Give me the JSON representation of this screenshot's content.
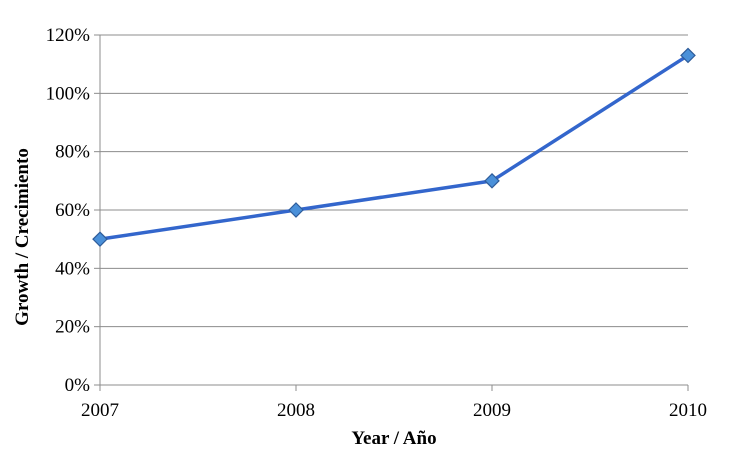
{
  "chart_data": {
    "type": "line",
    "title": "",
    "xlabel": "Year / Año",
    "ylabel": "Growth / Crecimiento",
    "categories": [
      "2007",
      "2008",
      "2009",
      "2010"
    ],
    "series": [
      {
        "values": [
          50,
          60,
          70,
          113
        ],
        "color": "#3366CC",
        "marker": "diamond"
      }
    ],
    "ylim": [
      0,
      120
    ],
    "y_ticks": [
      0,
      20,
      40,
      60,
      80,
      100,
      120
    ],
    "y_tick_labels": [
      "0%",
      "20%",
      "40%",
      "60%",
      "80%",
      "100%",
      "120%"
    ],
    "grid": "horizontal",
    "legend": "none",
    "colors": {
      "line": "#3366CC",
      "marker_fill": "#4A90D9",
      "marker_stroke": "#2E5C9A",
      "grid": "#8C8C8C",
      "axis": "#8C8C8C"
    }
  }
}
